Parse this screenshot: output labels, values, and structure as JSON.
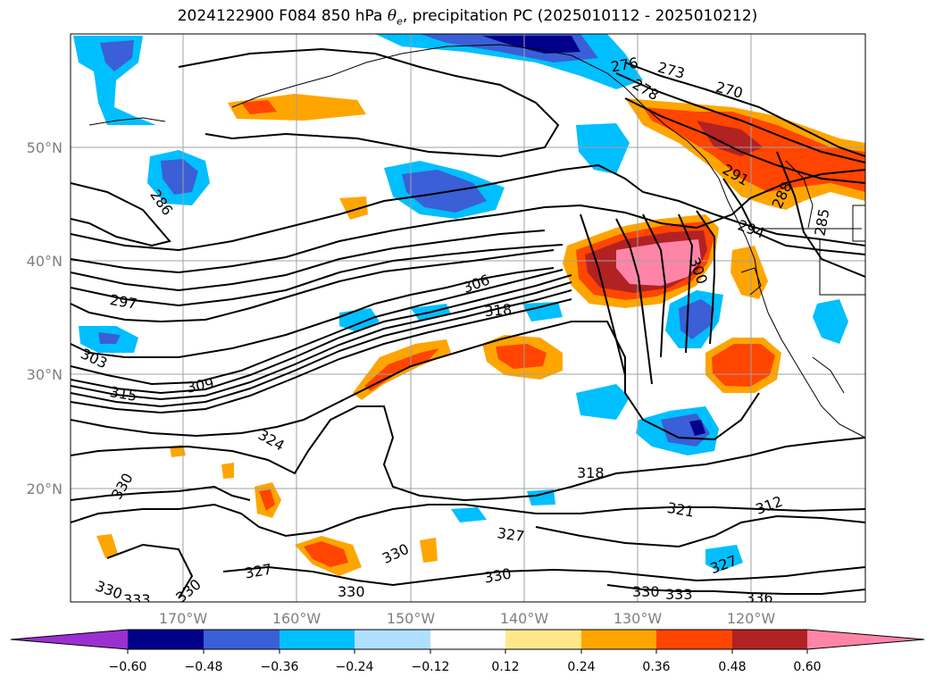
{
  "title": {
    "prefix": "2024122900 F084 850 hPa ",
    "symbol": "θ",
    "subscript": "e",
    "suffix": ", precipitation PC (2025010112 - 2025010212)"
  },
  "lat_labels": [
    "50°N",
    "40°N",
    "30°N",
    "20°N"
  ],
  "lon_labels": [
    "170°W",
    "160°W",
    "150°W",
    "140°W",
    "130°W",
    "120°W"
  ],
  "contour_labels": [
    "276",
    "273",
    "270",
    "278",
    "291",
    "294",
    "288",
    "285",
    "286",
    "297",
    "303",
    "306",
    "309",
    "315",
    "318",
    "324",
    "330",
    "318",
    "321",
    "312",
    "327",
    "327",
    "330",
    "330",
    "330",
    "330",
    "333",
    "336",
    "327",
    "330",
    "330",
    "333",
    "300"
  ],
  "colorbar": {
    "ticks": [
      "−0.60",
      "−0.48",
      "−0.36",
      "−0.24",
      "−0.12",
      "0.12",
      "0.24",
      "0.36",
      "0.48",
      "0.60"
    ],
    "colors": [
      "#9b30d0",
      "#00008b",
      "#3a5fd6",
      "#00bfff",
      "#b0e0ff",
      "#ffffff",
      "#ffe88a",
      "#ffa500",
      "#ff4500",
      "#b22222",
      "#ff85a8"
    ]
  },
  "colors": {
    "grid": "#a0a0a0",
    "contour": "#000000",
    "tick_label": "#7f7f7f"
  }
}
